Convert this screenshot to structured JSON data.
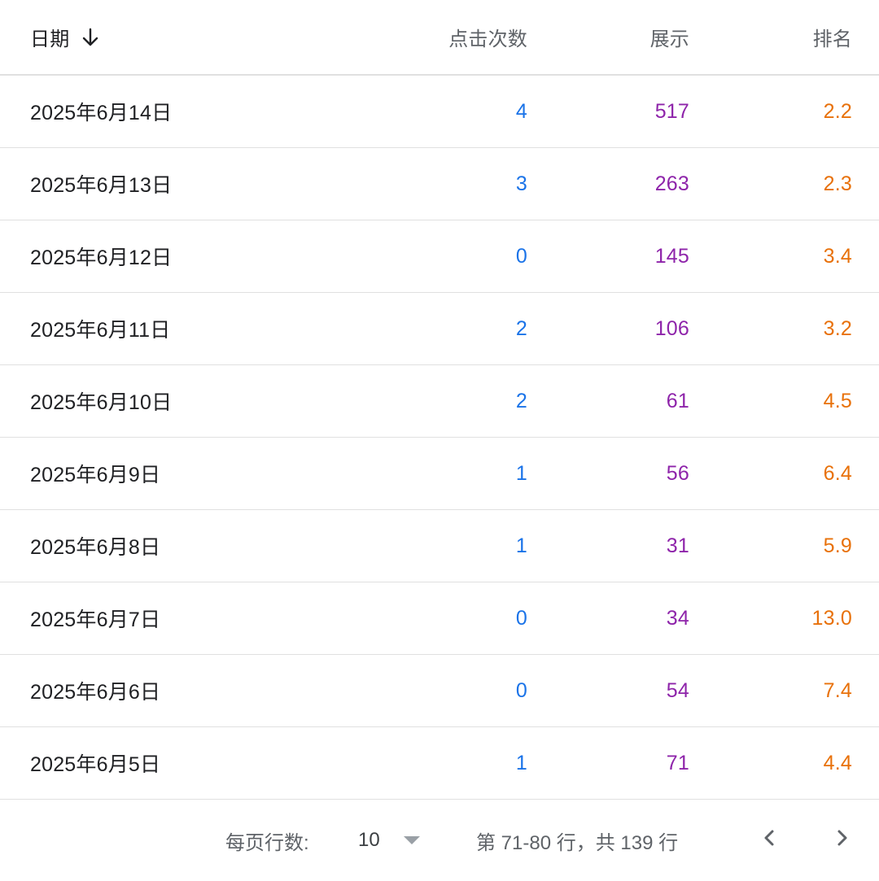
{
  "header": {
    "date": "日期",
    "clicks": "点击次数",
    "impressions": "展示",
    "position": "排名"
  },
  "rows": [
    {
      "date": "2025年6月14日",
      "clicks": "4",
      "impressions": "517",
      "position": "2.2"
    },
    {
      "date": "2025年6月13日",
      "clicks": "3",
      "impressions": "263",
      "position": "2.3"
    },
    {
      "date": "2025年6月12日",
      "clicks": "0",
      "impressions": "145",
      "position": "3.4"
    },
    {
      "date": "2025年6月11日",
      "clicks": "2",
      "impressions": "106",
      "position": "3.2"
    },
    {
      "date": "2025年6月10日",
      "clicks": "2",
      "impressions": "61",
      "position": "4.5"
    },
    {
      "date": "2025年6月9日",
      "clicks": "1",
      "impressions": "56",
      "position": "6.4"
    },
    {
      "date": "2025年6月8日",
      "clicks": "1",
      "impressions": "31",
      "position": "5.9"
    },
    {
      "date": "2025年6月7日",
      "clicks": "0",
      "impressions": "34",
      "position": "13.0"
    },
    {
      "date": "2025年6月6日",
      "clicks": "0",
      "impressions": "54",
      "position": "7.4"
    },
    {
      "date": "2025年6月5日",
      "clicks": "1",
      "impressions": "71",
      "position": "4.4"
    }
  ],
  "footer": {
    "rows_per_page_label": "每页行数:",
    "rows_per_page_value": "10",
    "range_text": "第 71-80 行，共 139 行"
  },
  "icons": {
    "sort": "arrow-down-icon",
    "dropdown": "caret-down-icon",
    "prev": "chevron-left-icon",
    "next": "chevron-right-icon"
  },
  "colors": {
    "clicks": "#1a73e8",
    "impressions": "#8e24aa",
    "position": "#e8710a",
    "divider": "#e0e0e0"
  }
}
